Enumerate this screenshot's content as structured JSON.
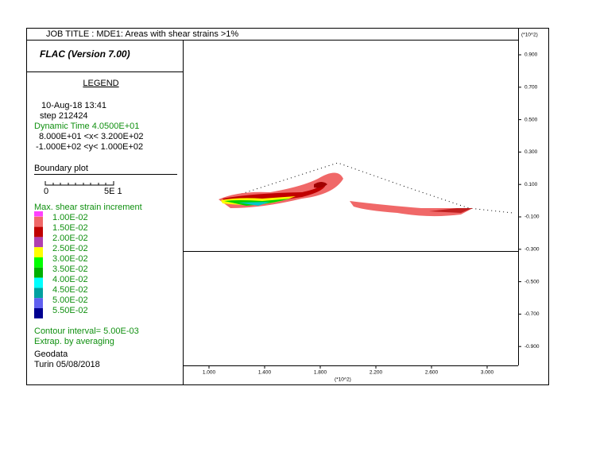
{
  "header": {
    "job_title": "JOB TITLE : MDE1: Areas with shear strains >1%",
    "program": "FLAC (Version 7.00)"
  },
  "legend": {
    "heading": "LEGEND",
    "date": "10-Aug-18  13:41",
    "step": "step   212424",
    "dynamic_time": "Dynamic Time   4.0500E+01",
    "x_range": "8.000E+01 <x<  3.200E+02",
    "y_range": "-1.000E+02 <y<  1.000E+02",
    "boundary_plot": "Boundary plot",
    "scale_start": "0",
    "scale_end": "5E  1",
    "contour_title": "Max. shear strain increment",
    "contour_levels": [
      "1.00E-02",
      "1.50E-02",
      "2.00E-02",
      "2.50E-02",
      "3.00E-02",
      "3.50E-02",
      "4.00E-02",
      "4.50E-02",
      "5.00E-02",
      "5.50E-02"
    ],
    "contour_interval": "Contour interval=  5.00E-03",
    "extrapolation": "Extrap. by averaging",
    "company": "Geodata",
    "place_date": "Turin 05/08/2018"
  },
  "axes": {
    "y_multiplier": "(*10^2)",
    "x_multiplier": "(*10^2)",
    "y_ticks": [
      "0.900",
      "0.700",
      "0.500",
      "0.300",
      "0.100",
      "-0.100",
      "-0.300",
      "-0.500",
      "-0.700",
      "-0.900"
    ],
    "x_ticks": [
      "1.000",
      "1.400",
      "1.800",
      "2.200",
      "2.600",
      "3.000"
    ]
  }
}
